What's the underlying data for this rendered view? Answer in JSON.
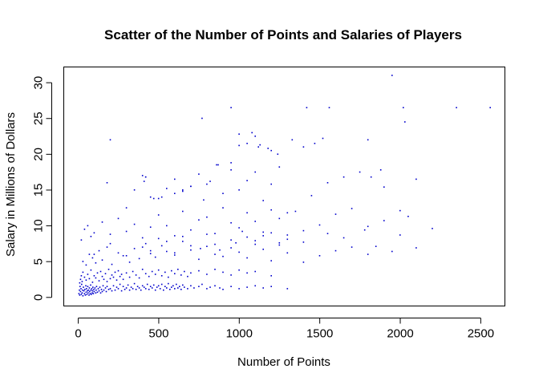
{
  "chart_data": {
    "type": "scatter",
    "title": "Scatter of the Number of Points and Salaries of Players",
    "xlabel": "Number of Points",
    "ylabel": "Salary in Millions of Dollars",
    "xlim": [
      -90,
      2650
    ],
    "ylim": [
      -1.2,
      32.2
    ],
    "xticks": [
      0,
      500,
      1000,
      1500,
      2000,
      2500
    ],
    "yticks": [
      0,
      5,
      10,
      15,
      20,
      25,
      30
    ],
    "grid": false,
    "legend": "none",
    "point_color": "#0000cc",
    "x": [
      5,
      8,
      10,
      12,
      15,
      18,
      20,
      22,
      25,
      28,
      30,
      33,
      36,
      40,
      42,
      45,
      48,
      50,
      52,
      55,
      58,
      60,
      62,
      65,
      68,
      70,
      72,
      75,
      78,
      80,
      82,
      85,
      88,
      90,
      92,
      95,
      98,
      100,
      105,
      110,
      112,
      115,
      120,
      125,
      130,
      135,
      140,
      145,
      150,
      155,
      160,
      170,
      175,
      180,
      190,
      200,
      210,
      220,
      230,
      240,
      250,
      260,
      270,
      280,
      290,
      300,
      310,
      320,
      330,
      340,
      350,
      360,
      370,
      380,
      390,
      400,
      410,
      420,
      430,
      440,
      450,
      460,
      470,
      480,
      490,
      500,
      510,
      520,
      530,
      540,
      550,
      560,
      570,
      580,
      590,
      600,
      610,
      620,
      630,
      640,
      650,
      660,
      680,
      700,
      720,
      750,
      770,
      800,
      820,
      850,
      880,
      900,
      950,
      1000,
      1050,
      1100,
      1150,
      1200,
      1300,
      10,
      15,
      20,
      25,
      30,
      40,
      50,
      60,
      70,
      80,
      90,
      100,
      110,
      120,
      130,
      140,
      150,
      160,
      170,
      180,
      190,
      200,
      210,
      220,
      230,
      240,
      250,
      260,
      270,
      280,
      300,
      320,
      340,
      360,
      380,
      400,
      420,
      440,
      460,
      480,
      500,
      520,
      540,
      560,
      580,
      600,
      620,
      640,
      660,
      680,
      700,
      750,
      800,
      850,
      900,
      950,
      1000,
      1050,
      1100,
      1200,
      30,
      50,
      70,
      90,
      110,
      130,
      150,
      180,
      210,
      250,
      280,
      320,
      350,
      380,
      420,
      450,
      480,
      520,
      550,
      600,
      650,
      700,
      750,
      800,
      850,
      900,
      950,
      1000,
      1050,
      1100,
      1150,
      1200,
      1250,
      1300,
      1400,
      1500,
      1600,
      1700,
      1800,
      20,
      40,
      60,
      80,
      100,
      150,
      200,
      250,
      300,
      350,
      400,
      450,
      500,
      550,
      600,
      650,
      700,
      750,
      800,
      850,
      900,
      950,
      1000,
      1050,
      1100,
      1150,
      1200,
      1250,
      1300,
      1400,
      1500,
      1600,
      1700,
      1800,
      1900,
      2000,
      2050,
      2200,
      180,
      200,
      300,
      350,
      400,
      420,
      450,
      500,
      550,
      600,
      650,
      700,
      750,
      780,
      820,
      860,
      900,
      950,
      1000,
      1050,
      1100,
      1150,
      1200,
      1250,
      1350,
      1450,
      1550,
      1650,
      1750,
      1900,
      2100,
      100,
      200,
      300,
      400,
      450,
      500,
      550,
      600,
      650,
      700,
      760,
      800,
      850,
      880,
      950,
      980,
      1020,
      1050,
      1100,
      1150,
      1200,
      1250,
      1300,
      1400,
      1550,
      1650,
      1780,
      1850,
      1950,
      2000,
      2100,
      770,
      950,
      1080,
      1100,
      1120,
      1200,
      1240,
      1330,
      1420,
      1520,
      1560,
      1800,
      2020,
      2350,
      2560,
      1950,
      1050,
      1000,
      600,
      520,
      470,
      420,
      410,
      650,
      700,
      800,
      870,
      950,
      1000,
      1130,
      1180,
      1300,
      1400,
      1470,
      1820,
      1880,
      2030
    ],
    "y": [
      0.5,
      1.0,
      0.3,
      1.5,
      0.8,
      1.2,
      0.4,
      1.8,
      0.6,
      1.0,
      0.2,
      1.4,
      0.9,
      0.5,
      1.1,
      0.3,
      1.6,
      0.7,
      1.2,
      0.4,
      0.9,
      1.5,
      0.6,
      1.0,
      0.3,
      1.3,
      0.8,
      0.5,
      1.7,
      1.0,
      0.4,
      1.2,
      0.6,
      0.9,
      1.4,
      0.5,
      1.1,
      0.8,
      1.3,
      0.6,
      1.0,
      1.5,
      0.7,
      1.2,
      0.9,
      1.4,
      0.6,
      1.1,
      0.8,
      1.6,
      1.0,
      1.3,
      0.8,
      1.5,
      1.1,
      1.2,
      0.9,
      1.6,
      1.0,
      1.4,
      1.2,
      1.8,
      0.9,
      1.5,
      1.1,
      1.3,
      1.7,
      1.0,
      1.4,
      1.2,
      1.9,
      1.1,
      1.5,
      1.3,
      1.0,
      1.6,
      1.4,
      1.2,
      1.8,
      1.1,
      1.5,
      1.3,
      1.7,
      1.0,
      1.4,
      1.6,
      1.2,
      1.8,
      1.0,
      1.5,
      1.3,
      1.9,
      1.1,
      1.4,
      1.6,
      1.2,
      1.8,
      1.3,
      1.5,
      1.1,
      1.7,
      1.4,
      1.2,
      1.6,
      1.3,
      1.5,
      1.8,
      1.2,
      1.4,
      1.6,
      1.3,
      1.1,
      1.5,
      1.2,
      1.4,
      1.6,
      1.3,
      1.5,
      1.2,
      2.0,
      2.5,
      3.0,
      2.2,
      3.5,
      2.8,
      2.4,
      3.2,
      2.6,
      3.8,
      2.1,
      3.0,
      2.7,
      3.4,
      2.3,
      3.6,
      2.9,
      2.5,
      3.3,
      2.2,
      3.9,
      2.6,
      3.1,
      2.8,
      3.5,
      2.4,
      3.7,
      2.9,
      3.2,
      2.5,
      3.4,
      2.8,
      3.6,
      3.1,
      2.7,
      3.9,
      3.3,
      2.9,
      3.6,
      3.2,
      3.8,
      3.0,
      3.5,
      2.8,
      3.7,
      3.3,
      3.9,
      3.1,
      3.6,
      2.9,
      3.4,
      3.7,
      3.2,
      3.9,
      3.5,
      3.1,
      3.8,
      3.4,
      3.6,
      3.0,
      5.0,
      4.5,
      6.0,
      5.5,
      4.8,
      6.5,
      5.2,
      7.0,
      4.6,
      6.2,
      5.8,
      4.9,
      6.8,
      5.4,
      7.5,
      6.1,
      5.6,
      7.2,
      6.4,
      5.9,
      7.8,
      6.6,
      5.3,
      7.1,
      6.0,
      5.7,
      6.9,
      6.3,
      5.5,
      7.4,
      6.7,
      5.1,
      7.6,
      6.2,
      4.9,
      5.8,
      6.5,
      7.0,
      6.0,
      8.0,
      9.5,
      10.0,
      8.5,
      9.0,
      10.5,
      8.8,
      11.0,
      9.2,
      10.2,
      8.3,
      9.8,
      11.5,
      10.0,
      8.6,
      12.0,
      9.4,
      10.8,
      11.2,
      8.9,
      12.5,
      10.4,
      9.7,
      11.8,
      10.6,
      9.1,
      12.2,
      11.0,
      8.7,
      9.3,
      10.1,
      11.6,
      12.4,
      9.9,
      10.7,
      12.1,
      11.3,
      9.6,
      16.0,
      22.0,
      12.5,
      15.0,
      17.0,
      16.8,
      14.0,
      13.8,
      15.2,
      16.5,
      14.8,
      15.5,
      17.2,
      13.6,
      16.2,
      18.5,
      14.5,
      17.8,
      15.0,
      16.3,
      17.5,
      13.5,
      15.8,
      18.2,
      12.0,
      14.2,
      16.0,
      16.8,
      17.5,
      15.4,
      16.5,
      6.0,
      7.5,
      5.8,
      7.0,
      6.5,
      8.2,
      7.8,
      6.2,
      8.5,
      7.2,
      6.8,
      8.8,
      7.4,
      6.6,
      8.0,
      7.6,
      9.2,
      8.4,
      7.9,
      8.6,
      9.0,
      7.3,
      8.1,
      7.7,
      8.9,
      8.3,
      9.4,
      7.1,
      6.4,
      8.7,
      6.9,
      25.0,
      26.5,
      23.0,
      22.5,
      21.0,
      20.5,
      20.0,
      22.0,
      26.5,
      22.2,
      26.5,
      22.0,
      26.5,
      26.5,
      26.5,
      31.0,
      21.5,
      22.8,
      14.5,
      14.0,
      13.8,
      16.8,
      16.2,
      15.0,
      15.5,
      15.8,
      18.5,
      18.8,
      21.2,
      21.3,
      20.8,
      11.8,
      21.0,
      21.5,
      16.8,
      17.8,
      24.5
    ]
  }
}
